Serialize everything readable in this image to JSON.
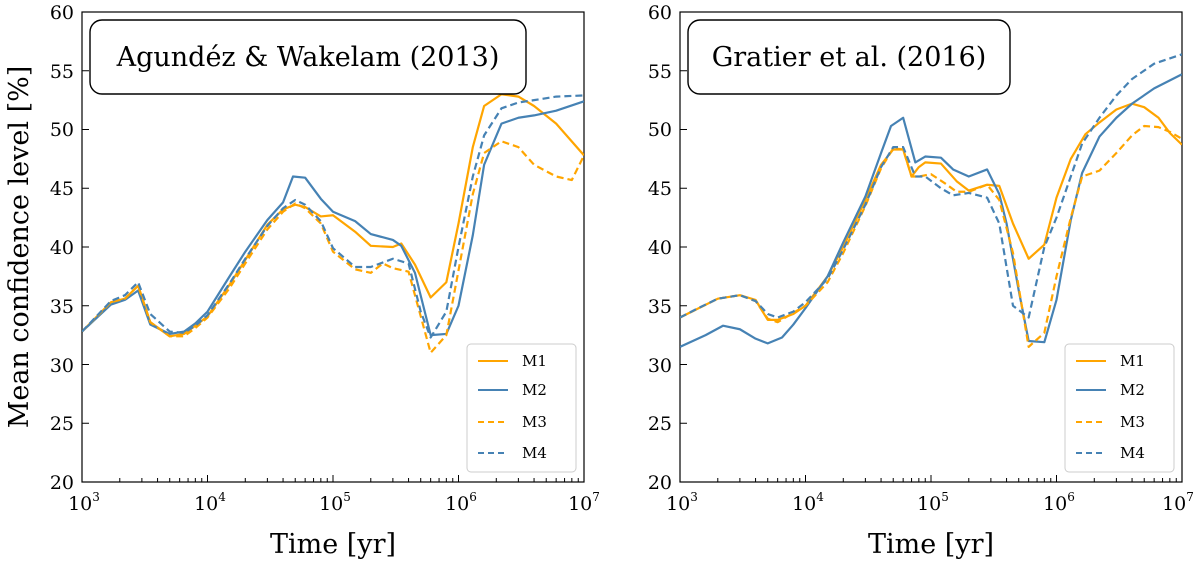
{
  "colors": {
    "orange": "#FFA500",
    "blue": "#4682B4"
  },
  "chart_data": [
    {
      "type": "line",
      "title": "Agundéz & Wakelam (2013)",
      "xlabel": "Time [yr]",
      "ylabel": "Mean confidence level [%]",
      "xscale": "log",
      "xlim": [
        1000,
        10000000
      ],
      "ylim": [
        20,
        60
      ],
      "xticks": [
        {
          "base": "10",
          "exp": "3"
        },
        {
          "base": "10",
          "exp": "4"
        },
        {
          "base": "10",
          "exp": "5"
        },
        {
          "base": "10",
          "exp": "6"
        },
        {
          "base": "10",
          "exp": "7"
        }
      ],
      "yticks": [
        "20",
        "25",
        "30",
        "35",
        "40",
        "45",
        "50",
        "55",
        "60"
      ],
      "legend": "bottom-right",
      "series": [
        {
          "name": "M1",
          "color": "orange",
          "dash": false,
          "x": [
            1000,
            1700,
            2200,
            2800,
            3500,
            5000,
            6500,
            8000,
            10000,
            15000,
            20000,
            30000,
            40000,
            50000,
            60000,
            80000,
            100000,
            150000,
            200000,
            300000,
            350000,
            450000,
            600000,
            800000,
            1000000,
            1300000,
            1600000,
            2200000,
            3000000,
            4000000,
            6000000,
            10000000
          ],
          "y": [
            32.8,
            35.3,
            35.6,
            36.7,
            33.6,
            32.4,
            32.6,
            33.3,
            34.1,
            36.8,
            38.9,
            41.9,
            43.2,
            43.6,
            43.4,
            42.6,
            42.7,
            41.3,
            40.1,
            40.0,
            40.3,
            38.5,
            35.7,
            37.0,
            42.0,
            48.5,
            52.0,
            53.0,
            52.8,
            52.0,
            50.5,
            47.8
          ]
        },
        {
          "name": "M2",
          "color": "blue",
          "dash": false,
          "x": [
            1000,
            1700,
            2200,
            2800,
            3500,
            5000,
            6500,
            8000,
            10000,
            15000,
            20000,
            30000,
            40000,
            48000,
            60000,
            80000,
            100000,
            150000,
            200000,
            300000,
            350000,
            450000,
            600000,
            800000,
            1000000,
            1300000,
            1600000,
            2200000,
            3000000,
            4000000,
            6000000,
            10000000
          ],
          "y": [
            32.8,
            35.1,
            35.5,
            36.3,
            33.4,
            32.6,
            32.8,
            33.5,
            34.5,
            37.5,
            39.6,
            42.3,
            43.8,
            46.0,
            45.9,
            44.1,
            43.0,
            42.2,
            41.1,
            40.6,
            40.1,
            37.8,
            32.5,
            32.6,
            35.0,
            41.0,
            47.0,
            50.5,
            51.0,
            51.2,
            51.6,
            52.4
          ]
        },
        {
          "name": "M3",
          "color": "orange",
          "dash": true,
          "x": [
            1000,
            1700,
            2200,
            2800,
            3500,
            5000,
            6500,
            8000,
            10000,
            15000,
            20000,
            30000,
            40000,
            50000,
            60000,
            80000,
            100000,
            150000,
            200000,
            250000,
            300000,
            400000,
            600000,
            800000,
            1000000,
            1300000,
            1600000,
            2200000,
            3000000,
            4000000,
            6000000,
            8000000,
            10000000
          ],
          "y": [
            32.8,
            35.3,
            35.6,
            36.7,
            33.6,
            32.4,
            32.4,
            33.1,
            34.0,
            36.5,
            38.6,
            41.5,
            43.0,
            43.7,
            43.3,
            42.0,
            39.6,
            38.1,
            37.8,
            38.6,
            38.2,
            37.9,
            31.0,
            32.5,
            38.0,
            44.5,
            48.0,
            49.0,
            48.5,
            47.0,
            46.0,
            45.7,
            47.8
          ]
        },
        {
          "name": "M4",
          "color": "blue",
          "dash": true,
          "x": [
            1000,
            1700,
            2200,
            2800,
            3500,
            5000,
            6500,
            8000,
            10000,
            15000,
            20000,
            30000,
            40000,
            50000,
            60000,
            80000,
            100000,
            150000,
            200000,
            300000,
            400000,
            500000,
            600000,
            800000,
            1000000,
            1300000,
            1600000,
            2200000,
            3000000,
            4000000,
            6000000,
            10000000
          ],
          "y": [
            32.8,
            35.4,
            35.9,
            37.0,
            34.3,
            32.8,
            32.7,
            33.3,
            34.2,
            36.9,
            39.0,
            41.8,
            43.3,
            44.0,
            43.6,
            42.2,
            39.9,
            38.3,
            38.3,
            39.0,
            38.6,
            34.5,
            32.3,
            34.5,
            40.0,
            46.0,
            49.5,
            51.8,
            52.3,
            52.5,
            52.8,
            52.9
          ]
        }
      ]
    },
    {
      "type": "line",
      "title": "Gratier et al. (2016)",
      "xlabel": "Time [yr]",
      "ylabel": "",
      "xscale": "log",
      "xlim": [
        1000,
        10000000
      ],
      "ylim": [
        20,
        60
      ],
      "xticks": [
        {
          "base": "10",
          "exp": "3"
        },
        {
          "base": "10",
          "exp": "4"
        },
        {
          "base": "10",
          "exp": "5"
        },
        {
          "base": "10",
          "exp": "6"
        },
        {
          "base": "10",
          "exp": "7"
        }
      ],
      "yticks": [
        "20",
        "25",
        "30",
        "35",
        "40",
        "45",
        "50",
        "55",
        "60"
      ],
      "legend": "bottom-right",
      "series": [
        {
          "name": "M1",
          "color": "orange",
          "dash": false,
          "x": [
            1000,
            2000,
            3000,
            4000,
            5000,
            6000,
            8000,
            10000,
            15000,
            20000,
            30000,
            40000,
            50000,
            60000,
            70000,
            80000,
            90000,
            120000,
            160000,
            200000,
            280000,
            350000,
            450000,
            600000,
            800000,
            1000000,
            1300000,
            1700000,
            2200000,
            3000000,
            4000000,
            5000000,
            6500000,
            8000000,
            10000000
          ],
          "y": [
            34.0,
            35.6,
            35.9,
            35.5,
            33.8,
            33.8,
            34.3,
            35.0,
            37.5,
            40.0,
            44.0,
            47.0,
            48.3,
            48.3,
            46.0,
            46.8,
            47.2,
            47.1,
            45.6,
            44.8,
            45.3,
            45.2,
            42.0,
            39.0,
            40.2,
            44.2,
            47.5,
            49.6,
            50.6,
            51.7,
            52.2,
            51.9,
            51.0,
            49.7,
            48.7
          ]
        },
        {
          "name": "M2",
          "color": "blue",
          "dash": false,
          "x": [
            1000,
            1600,
            2200,
            3000,
            4000,
            5000,
            6500,
            8000,
            10000,
            15000,
            20000,
            30000,
            40000,
            48000,
            60000,
            75000,
            90000,
            120000,
            150000,
            200000,
            280000,
            350000,
            400000,
            500000,
            600000,
            800000,
            1000000,
            1300000,
            1600000,
            2200000,
            3000000,
            4000000,
            6000000,
            10000000
          ],
          "y": [
            31.5,
            32.5,
            33.3,
            33.0,
            32.2,
            31.8,
            32.3,
            33.4,
            34.8,
            37.5,
            40.4,
            44.3,
            48.0,
            50.3,
            51.0,
            47.2,
            47.7,
            47.6,
            46.6,
            46.0,
            46.6,
            44.5,
            42.0,
            36.3,
            32.0,
            31.9,
            35.5,
            42.3,
            46.3,
            49.4,
            51.0,
            52.2,
            53.5,
            54.7
          ]
        },
        {
          "name": "M3",
          "color": "orange",
          "dash": true,
          "x": [
            1000,
            2000,
            3000,
            4000,
            5000,
            6000,
            8000,
            10000,
            15000,
            20000,
            30000,
            40000,
            50000,
            60000,
            70000,
            80000,
            100000,
            130000,
            160000,
            200000,
            280000,
            350000,
            450000,
            600000,
            800000,
            1000000,
            1300000,
            1600000,
            2200000,
            3000000,
            4000000,
            5000000,
            6500000,
            8000000,
            10000000
          ],
          "y": [
            34.0,
            35.6,
            35.9,
            35.4,
            33.9,
            33.6,
            34.4,
            35.0,
            37.0,
            39.5,
            43.5,
            46.7,
            48.4,
            48.3,
            46.0,
            46.0,
            46.2,
            45.4,
            44.7,
            44.7,
            45.3,
            44.0,
            39.5,
            31.5,
            32.7,
            37.5,
            42.5,
            46.0,
            46.5,
            48.0,
            49.5,
            50.3,
            50.2,
            49.8,
            49.2
          ]
        },
        {
          "name": "M4",
          "color": "blue",
          "dash": true,
          "x": [
            1000,
            1400,
            2000,
            3000,
            4000,
            5000,
            6000,
            8000,
            10000,
            15000,
            20000,
            30000,
            40000,
            50000,
            60000,
            75000,
            90000,
            120000,
            150000,
            200000,
            280000,
            350000,
            450000,
            600000,
            800000,
            1000000,
            1300000,
            1600000,
            2200000,
            3000000,
            4000000,
            6000000,
            10000000
          ],
          "y": [
            34.0,
            34.8,
            35.6,
            35.9,
            35.4,
            34.3,
            34.0,
            34.5,
            35.3,
            37.3,
            39.8,
            43.6,
            46.8,
            48.5,
            48.5,
            46.0,
            46.0,
            45.0,
            44.4,
            44.6,
            44.2,
            42.0,
            35.0,
            34.0,
            40.0,
            42.5,
            46.0,
            48.8,
            51.0,
            52.9,
            54.3,
            55.6,
            56.4
          ]
        }
      ]
    }
  ]
}
